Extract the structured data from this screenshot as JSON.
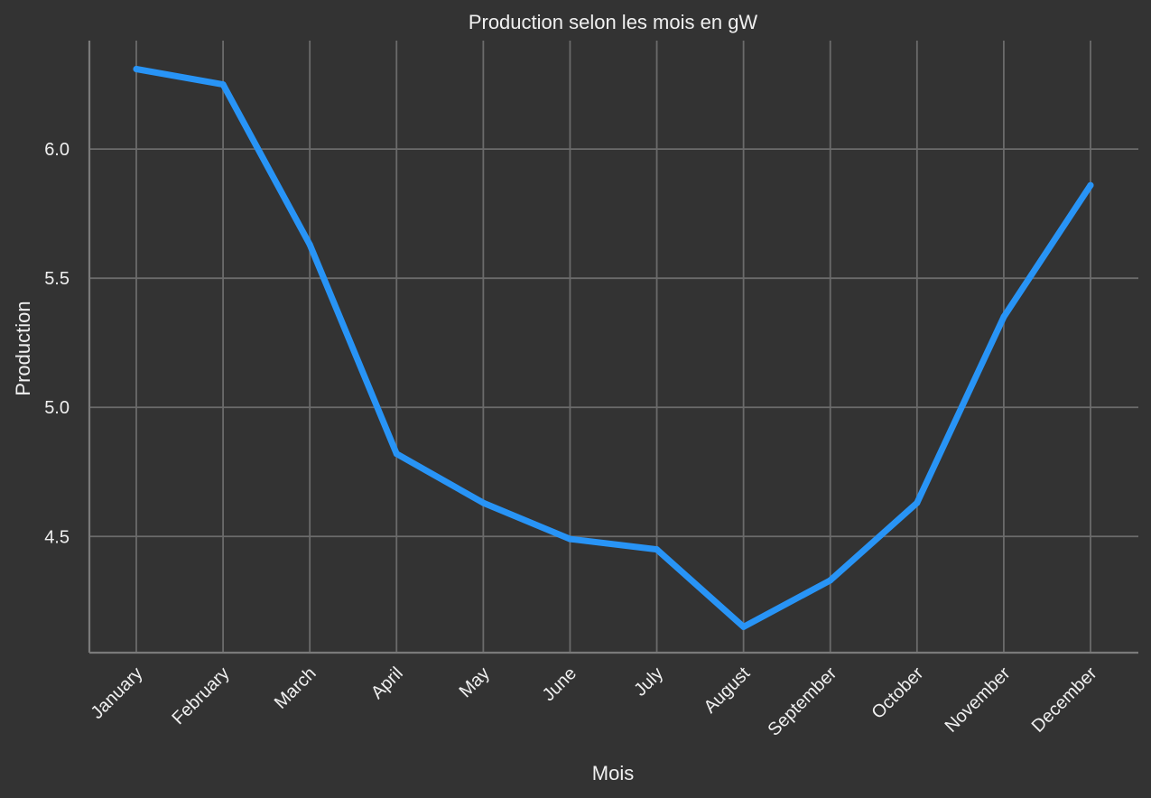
{
  "chart_data": {
    "type": "line",
    "title": "Production selon les mois en gW",
    "xlabel": "Mois",
    "ylabel": "Production",
    "categories": [
      "January",
      "February",
      "March",
      "April",
      "May",
      "June",
      "July",
      "August",
      "September",
      "October",
      "November",
      "December"
    ],
    "series": [
      {
        "values": [
          6.31,
          6.25,
          5.63,
          4.82,
          4.63,
          4.49,
          4.45,
          4.15,
          4.33,
          4.63,
          5.35,
          5.86
        ],
        "color": "#2894f6"
      }
    ],
    "yticks": [
      "4.5",
      "5.0",
      "5.5",
      "6.0"
    ],
    "ylim": [
      4.05,
      6.42
    ],
    "grid": true,
    "legend": "none"
  }
}
